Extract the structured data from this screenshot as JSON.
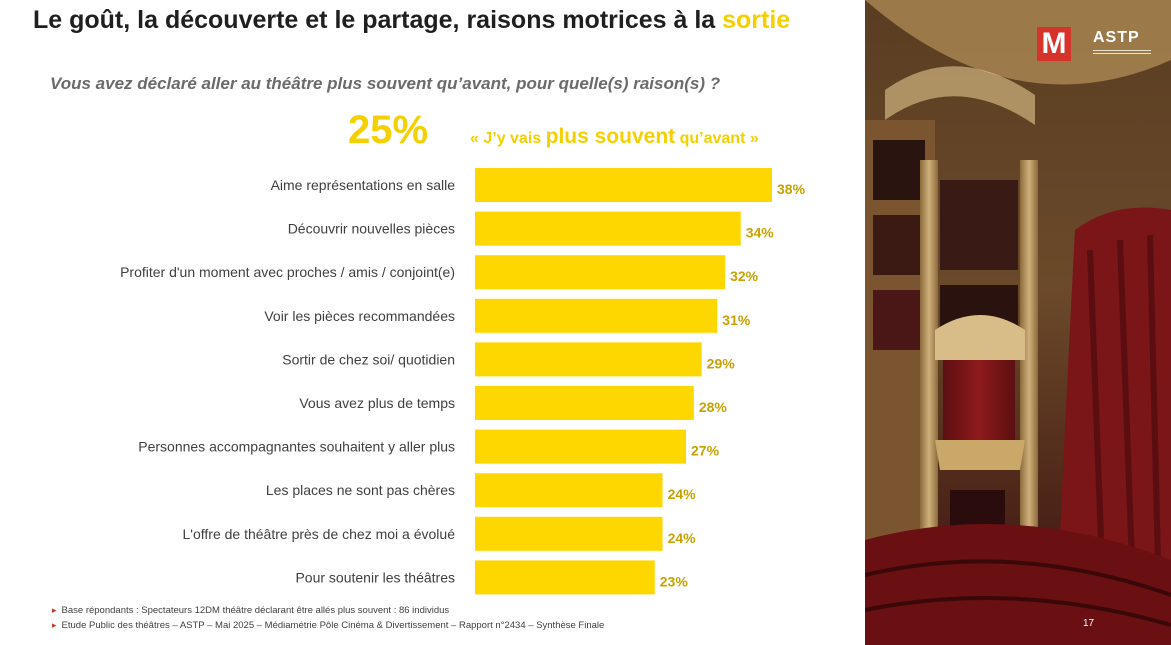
{
  "header": {
    "title_main": "Le goût, la découverte et le partage, raisons  motrices à la ",
    "title_highlight": "sortie",
    "question": "Vous avez déclaré aller au théâtre plus souvent qu’avant, pour quelle(s) raison(s) ?"
  },
  "kpi": {
    "value": "25%",
    "quote_open": "«  J’y vais ",
    "quote_emph": "plus souvent",
    "quote_close": " qu’avant »"
  },
  "chart_data": {
    "type": "bar",
    "orientation": "horizontal",
    "categories": [
      "Aime représentations en  salle",
      "Découvrir  nouvelles pièces",
      "Profiter d'un moment avec proches / amis / conjoint(e)",
      "Voir les pièces recommandées",
      "Sortir de chez soi/ quotidien",
      "Vous avez plus de temps",
      "Personnes accompagnantes souhaitent  y aller  plus",
      "Les places ne sont pas chères",
      "L'offre de théâtre près de chez moi a évolué",
      "Pour soutenir les théâtres"
    ],
    "values": [
      38,
      34,
      32,
      31,
      29,
      28,
      27,
      24,
      24,
      23
    ],
    "value_labels": [
      "38%",
      "34%",
      "32%",
      "31%",
      "29%",
      "28%",
      "27%",
      "24%",
      "24%",
      "23%"
    ],
    "unit": "%",
    "bar_color": "#ffd700",
    "label_color": "#c9a100",
    "xlim": [
      0,
      38
    ],
    "grid": false
  },
  "footnotes": [
    "Base répondants : Spectateurs 12DM théâtre déclarant être allés plus souvent : 86 individus",
    "Etude Public des théâtres – ASTP – Mai 2025 – Médiamétrie Pôle Cinéma & Divertissement – Rapport n°2434 – Synthèse Finale"
  ],
  "branding": {
    "logo_letter": "M",
    "logo_text": "ASTP"
  },
  "page_number": "17"
}
